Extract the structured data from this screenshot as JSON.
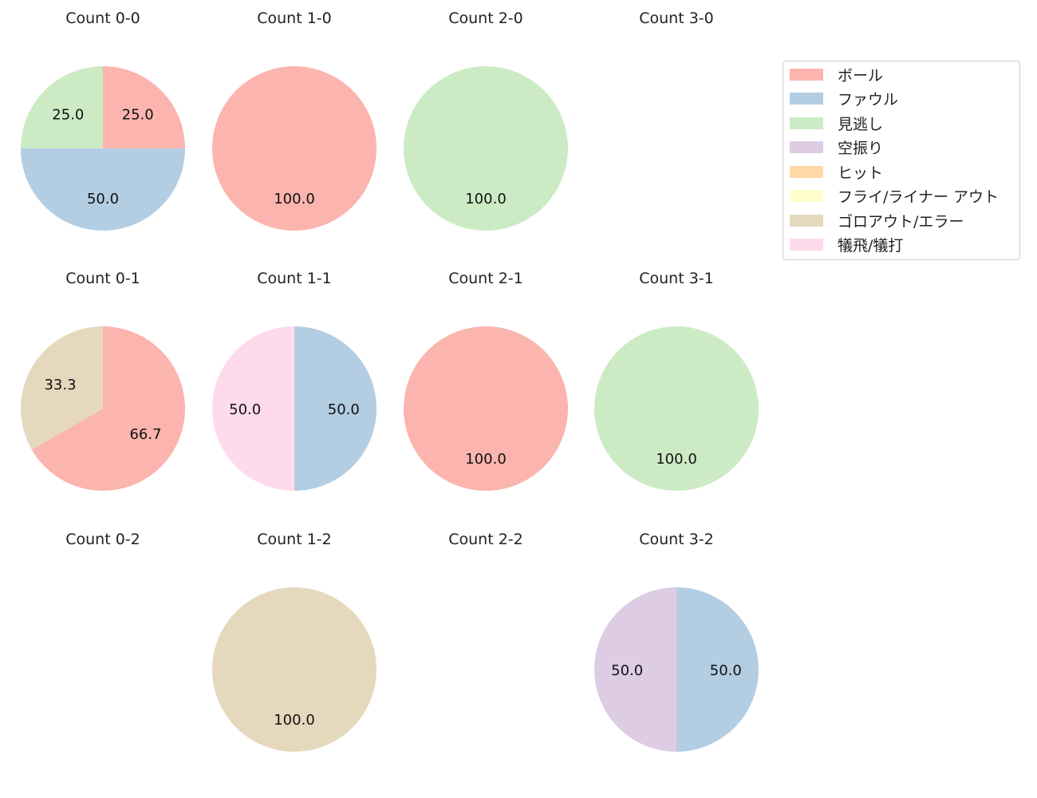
{
  "chart_data": {
    "type": "pie",
    "categories": [
      "ボール",
      "ファウル",
      "見逃し",
      "空振り",
      "ヒット",
      "フライ/ライナー アウト",
      "ゴロアウト/エラー",
      "犠飛/犠打"
    ],
    "colors": [
      "#fbb4ae",
      "#b3cde3",
      "#ccebc5",
      "#decbe4",
      "#fed9a6",
      "#ffffcc",
      "#e5d8bd",
      "#fddaec"
    ],
    "legend_position": "top-right",
    "panels": [
      {
        "title": "Count 0-0",
        "values": [
          1,
          2,
          1,
          0,
          0,
          0,
          0,
          0
        ],
        "labels": [
          "25.0",
          "50.0",
          "25.0",
          "",
          "",
          "",
          "",
          ""
        ]
      },
      {
        "title": "Count 1-0",
        "values": [
          1,
          0,
          0,
          0,
          0,
          0,
          0,
          0
        ],
        "labels": [
          "100.0",
          "",
          "",
          "",
          "",
          "",
          "",
          ""
        ]
      },
      {
        "title": "Count 2-0",
        "values": [
          0,
          0,
          1,
          0,
          0,
          0,
          0,
          0
        ],
        "labels": [
          "",
          "",
          "100.0",
          "",
          "",
          "",
          "",
          ""
        ]
      },
      {
        "title": "Count 3-0",
        "values": [
          0,
          0,
          0,
          0,
          0,
          0,
          0,
          0
        ],
        "labels": [
          "",
          "",
          "",
          "",
          "",
          "",
          "",
          ""
        ]
      },
      {
        "title": "Count 0-1",
        "values": [
          2,
          0,
          0,
          0,
          0,
          0,
          1,
          0
        ],
        "labels": [
          "66.7",
          "",
          "",
          "",
          "",
          "",
          "33.3",
          ""
        ]
      },
      {
        "title": "Count 1-1",
        "values": [
          0,
          1,
          0,
          0,
          0,
          0,
          0,
          1
        ],
        "labels": [
          "",
          "50.0",
          "",
          "",
          "",
          "",
          "",
          "50.0"
        ]
      },
      {
        "title": "Count 2-1",
        "values": [
          1,
          0,
          0,
          0,
          0,
          0,
          0,
          0
        ],
        "labels": [
          "100.0",
          "",
          "",
          "",
          "",
          "",
          "",
          ""
        ]
      },
      {
        "title": "Count 3-1",
        "values": [
          0,
          0,
          1,
          0,
          0,
          0,
          0,
          0
        ],
        "labels": [
          "",
          "",
          "100.0",
          "",
          "",
          "",
          "",
          ""
        ]
      },
      {
        "title": "Count 0-2",
        "values": [
          0,
          0,
          0,
          0,
          0,
          0,
          0,
          0
        ],
        "labels": [
          "",
          "",
          "",
          "",
          "",
          "",
          "",
          ""
        ]
      },
      {
        "title": "Count 1-2",
        "values": [
          0,
          0,
          0,
          0,
          0,
          0,
          1,
          0
        ],
        "labels": [
          "",
          "",
          "",
          "",
          "",
          "",
          "100.0",
          ""
        ]
      },
      {
        "title": "Count 2-2",
        "values": [
          0,
          0,
          0,
          0,
          0,
          0,
          0,
          0
        ],
        "labels": [
          "",
          "",
          "",
          "",
          "",
          "",
          "",
          ""
        ]
      },
      {
        "title": "Count 3-2",
        "values": [
          0,
          1,
          0,
          1,
          0,
          0,
          0,
          0
        ],
        "labels": [
          "",
          "50.0",
          "",
          "50.0",
          "",
          "",
          "",
          ""
        ]
      }
    ]
  }
}
